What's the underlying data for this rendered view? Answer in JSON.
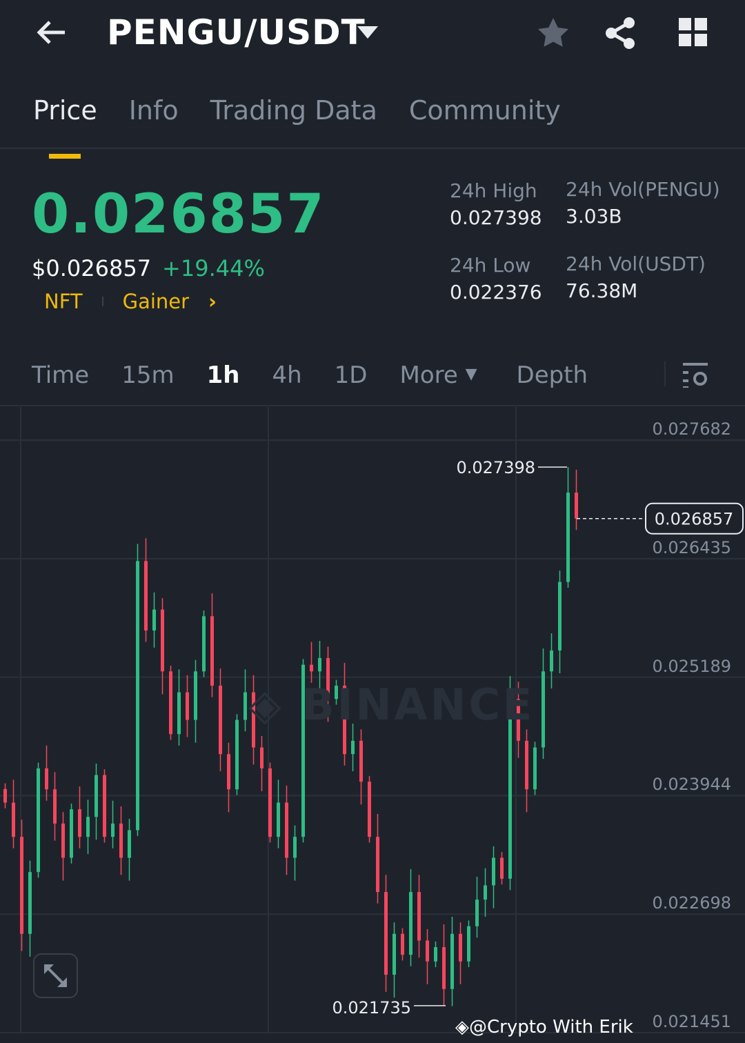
{
  "header": {
    "title": "PENGU/USDT",
    "back_icon": "arrow-left-icon",
    "dropdown_icon": "caret-down-icon",
    "favorite_icon": "star-icon",
    "share_icon": "share-icon",
    "menu_icon": "grid-icon"
  },
  "tabs": [
    {
      "label": "Price",
      "active": true
    },
    {
      "label": "Info"
    },
    {
      "label": "Trading Data"
    },
    {
      "label": "Community"
    }
  ],
  "price": {
    "last": "0.026857",
    "usd": "$0.026857",
    "change": "+19.44%",
    "tags": [
      "NFT",
      "Gainer"
    ]
  },
  "stats": {
    "high_label": "24h High",
    "high": "0.027398",
    "low_label": "24h Low",
    "low": "0.022376",
    "vol_base_label": "24h Vol(PENGU)",
    "vol_base": "3.03B",
    "vol_quote_label": "24h Vol(USDT)",
    "vol_quote": "76.38M"
  },
  "timeframes": [
    {
      "label": "Time"
    },
    {
      "label": "15m"
    },
    {
      "label": "1h",
      "active": true
    },
    {
      "label": "4h"
    },
    {
      "label": "1D"
    },
    {
      "label": "More"
    },
    {
      "label": "Depth"
    }
  ],
  "colors": {
    "up": "#2ebd85",
    "down": "#f6465d",
    "accent": "#f0b90b",
    "background": "#1e232b"
  },
  "watermark": "@Crypto With Erik",
  "chart_data": {
    "type": "candlestick",
    "y_ticks": [
      "0.027682",
      "0.026435",
      "0.025189",
      "0.023944",
      "0.022698",
      "0.021451"
    ],
    "ylim": [
      0.021451,
      0.027682
    ],
    "grid": true,
    "high_label": "0.027398",
    "low_label": "0.021735",
    "last_price_label": "0.026857",
    "closes": [
      0.02387,
      0.02351,
      0.02249,
      0.02314,
      0.02423,
      0.02401,
      0.02365,
      0.02329,
      0.0238,
      0.02351,
      0.02372,
      0.02416,
      0.02351,
      0.02365,
      0.02329,
      0.02358,
      0.02641,
      0.02568,
      0.0259,
      0.02525,
      0.02459,
      0.02503,
      0.02474,
      0.02525,
      0.02583,
      0.0251,
      0.02438,
      0.02401,
      0.02474,
      0.02503,
      0.02445,
      0.02423,
      0.02351,
      0.02387,
      0.02329,
      0.02351,
      0.02532,
      0.02525,
      0.02539,
      0.02496,
      0.0251,
      0.02438,
      0.02452,
      0.02409,
      0.02351,
      0.02293,
      0.02206,
      0.02249,
      0.02227,
      0.02293,
      0.02242,
      0.0222,
      0.02235,
      0.02191,
      0.02249,
      0.0222,
      0.02257,
      0.02285,
      0.023,
      0.02329,
      0.02307,
      0.02496,
      0.02452,
      0.02401,
      0.02445,
      0.02525,
      0.02547,
      0.02619,
      0.02713,
      0.026857
    ]
  }
}
